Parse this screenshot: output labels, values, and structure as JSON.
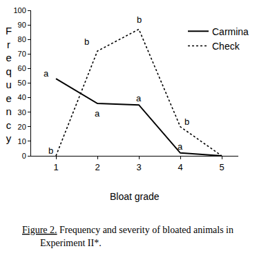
{
  "chart_data": {
    "type": "line",
    "title": "Figure 2. Frequency and severity of bloated animals in Experiment II*.",
    "x_label": "Bloat grade",
    "y_label": "Frequency",
    "x": [
      1,
      2,
      3,
      4,
      5
    ],
    "series": [
      {
        "name": "Carmina",
        "color": "#000000",
        "line_style": "solid",
        "values": [
          53,
          36,
          35,
          2,
          0
        ],
        "annotations": [
          "a",
          "a",
          "a",
          "a",
          null
        ]
      },
      {
        "name": "Check",
        "color": "#000000",
        "line_style": "dot",
        "values": [
          0,
          72,
          87,
          20,
          0
        ],
        "annotations": [
          "b",
          "b",
          "b",
          "b",
          null
        ]
      }
    ],
    "xlim": [
      0.4,
      5.4
    ],
    "xticks": [
      1,
      2,
      3,
      4,
      5
    ],
    "ylim": [
      0,
      100
    ],
    "yticks": [
      0,
      10,
      20,
      30,
      40,
      50,
      60,
      70,
      80,
      90,
      100
    ],
    "grid": false,
    "legend": "top right"
  }
}
